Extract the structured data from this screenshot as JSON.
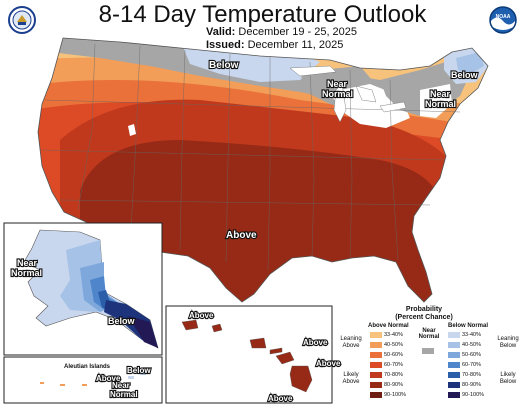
{
  "header": {
    "title": "8-14 Day Temperature Outlook",
    "valid_label": "Valid:",
    "valid_value": "December 19 - 25, 2025",
    "issued_label": "Issued:",
    "issued_value": "December 11, 2025"
  },
  "logos": {
    "left": "doc-seal",
    "right": "noaa-logo",
    "noaa_text": "NOAA"
  },
  "map_labels": {
    "below_north": "Below",
    "near_normal_greatlakes_1": "Near",
    "near_normal_greatlakes_2": "Normal",
    "below_maine": "Below",
    "near_normal_ne_1": "Near",
    "near_normal_ne_2": "Normal",
    "above_main": "Above",
    "ak_near_1": "Near",
    "ak_near_2": "Normal",
    "ak_below": "Below",
    "aleutian_title": "Aleutian Islands",
    "aleutian_above": "Above",
    "aleutian_below": "Below",
    "aleutian_near_1": "Near",
    "aleutian_near_2": "Normal",
    "hi_above_1": "Above",
    "hi_above_2": "Above",
    "hi_above_3": "Above",
    "hi_above_4": "Above"
  },
  "legend": {
    "title_1": "Probability",
    "title_2": "(Percent Chance)",
    "above_header": "Above Normal",
    "near_header_1": "Near",
    "near_header_2": "Normal",
    "below_header": "Below Normal",
    "leaning_above_1": "Leaning",
    "leaning_above_2": "Above",
    "likely_above_1": "Likely",
    "likely_above_2": "Above",
    "leaning_below_1": "Leaning",
    "leaning_below_2": "Below",
    "likely_below_1": "Likely",
    "likely_below_2": "Below",
    "above": [
      {
        "label": "33-40%",
        "color": "#f7c37c"
      },
      {
        "label": "40-50%",
        "color": "#f29d58"
      },
      {
        "label": "50-60%",
        "color": "#ea7139"
      },
      {
        "label": "60-70%",
        "color": "#dc4a26"
      },
      {
        "label": "70-80%",
        "color": "#c0391c"
      },
      {
        "label": "80-90%",
        "color": "#972a16"
      },
      {
        "label": "90-100%",
        "color": "#6e1e10"
      }
    ],
    "near_color": "#a6a6a6",
    "below": [
      {
        "label": "33-40%",
        "color": "#c9d7ee"
      },
      {
        "label": "40-50%",
        "color": "#a6c2e6"
      },
      {
        "label": "50-60%",
        "color": "#7ea8dc"
      },
      {
        "label": "60-70%",
        "color": "#4f86cb"
      },
      {
        "label": "70-80%",
        "color": "#2b5ea8"
      },
      {
        "label": "80-90%",
        "color": "#1d347d"
      },
      {
        "label": "90-100%",
        "color": "#231a55"
      }
    ]
  }
}
